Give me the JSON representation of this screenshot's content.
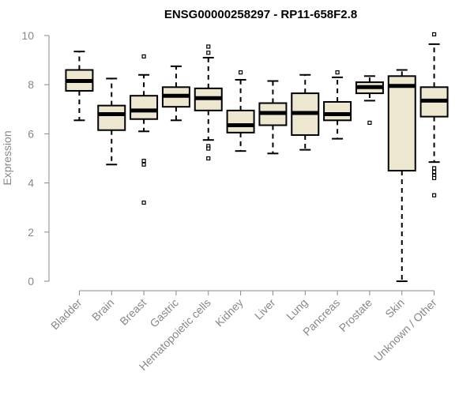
{
  "chart_data": {
    "type": "box",
    "title": "ENSG00000258297 - RP11-658F2.8",
    "xlabel": "",
    "ylabel": "Expression",
    "ylim": [
      0,
      10
    ],
    "yticks": [
      0,
      2,
      4,
      6,
      8,
      10
    ],
    "grid": false,
    "colors": {
      "box_fill": "#EDE7D0",
      "stroke": "#000000",
      "axis": "#888888"
    },
    "categories": [
      "Bladder",
      "Brain",
      "Breast",
      "Gastric",
      "Hematopoietic cells",
      "Kidney",
      "Liver",
      "Lung",
      "Pancreas",
      "Prostate",
      "Skin",
      "Unknown / Other"
    ],
    "boxes": [
      {
        "name": "Bladder",
        "min": 6.55,
        "q1": 7.75,
        "median": 8.15,
        "q3": 8.6,
        "max": 9.35,
        "outliers": []
      },
      {
        "name": "Brain",
        "min": 4.75,
        "q1": 6.15,
        "median": 6.8,
        "q3": 7.15,
        "max": 8.25,
        "outliers": []
      },
      {
        "name": "Breast",
        "min": 6.1,
        "q1": 6.6,
        "median": 6.95,
        "q3": 7.55,
        "max": 8.4,
        "outliers": [
          9.15,
          4.9,
          4.75,
          3.2
        ]
      },
      {
        "name": "Gastric",
        "min": 6.55,
        "q1": 7.1,
        "median": 7.55,
        "q3": 7.9,
        "max": 8.75,
        "outliers": []
      },
      {
        "name": "Hematopoietic cells",
        "min": 5.75,
        "q1": 6.95,
        "median": 7.45,
        "q3": 7.85,
        "max": 9.1,
        "outliers": [
          9.55,
          9.3,
          5.5,
          5.4,
          5.0
        ]
      },
      {
        "name": "Kidney",
        "min": 5.3,
        "q1": 6.05,
        "median": 6.35,
        "q3": 6.95,
        "max": 8.2,
        "outliers": [
          8.5
        ]
      },
      {
        "name": "Liver",
        "min": 5.2,
        "q1": 6.35,
        "median": 6.85,
        "q3": 7.25,
        "max": 8.15,
        "outliers": []
      },
      {
        "name": "Lung",
        "min": 5.35,
        "q1": 5.95,
        "median": 6.85,
        "q3": 7.65,
        "max": 8.4,
        "outliers": []
      },
      {
        "name": "Pancreas",
        "min": 5.8,
        "q1": 6.55,
        "median": 6.8,
        "q3": 7.3,
        "max": 8.3,
        "outliers": [
          8.5
        ]
      },
      {
        "name": "Prostate",
        "min": 7.35,
        "q1": 7.65,
        "median": 7.9,
        "q3": 8.1,
        "max": 8.35,
        "outliers": [
          6.45
        ]
      },
      {
        "name": "Skin",
        "min": 0.0,
        "q1": 4.5,
        "median": 7.95,
        "q3": 8.35,
        "max": 8.6,
        "outliers": []
      },
      {
        "name": "Unknown / Other",
        "min": 4.85,
        "q1": 6.7,
        "median": 7.35,
        "q3": 7.9,
        "max": 9.65,
        "outliers": [
          10.05,
          4.6,
          4.45,
          4.3,
          4.2,
          3.5
        ]
      }
    ]
  }
}
